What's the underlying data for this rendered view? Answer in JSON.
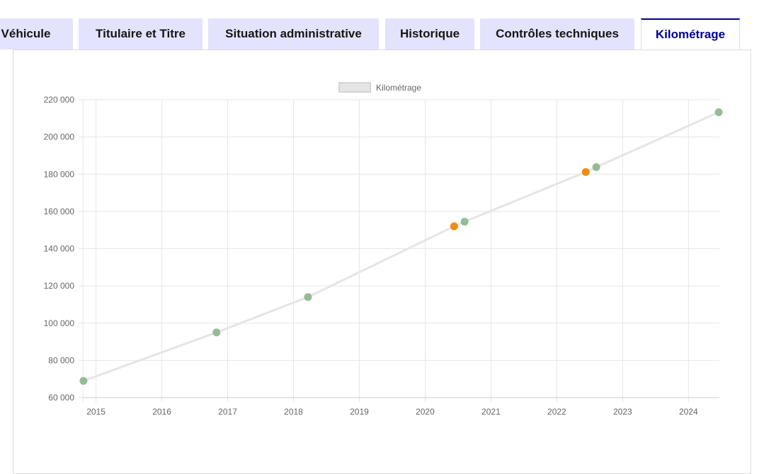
{
  "tabs": [
    {
      "label": "Véhicule",
      "active": false
    },
    {
      "label": "Titulaire et Titre",
      "active": false
    },
    {
      "label": "Situation administrative",
      "active": false
    },
    {
      "label": "Historique",
      "active": false
    },
    {
      "label": "Contrôles techniques",
      "active": false
    },
    {
      "label": "Kilométrage",
      "active": true
    }
  ],
  "chart_data": {
    "type": "line",
    "title": "",
    "xlabel": "",
    "ylabel": "",
    "legend": {
      "label": "Kilométrage",
      "position": "top-center"
    },
    "grid": true,
    "xlim": [
      2014.8,
      2024.47
    ],
    "ylim": [
      60000,
      220000
    ],
    "x_ticks": [
      2015,
      2016,
      2017,
      2018,
      2019,
      2020,
      2021,
      2022,
      2023,
      2024
    ],
    "x_tick_labels": [
      "2015",
      "2016",
      "2017",
      "2018",
      "2019",
      "2020",
      "2021",
      "2022",
      "2023",
      "2024"
    ],
    "y_ticks": [
      60000,
      80000,
      100000,
      120000,
      140000,
      160000,
      180000,
      200000,
      220000
    ],
    "y_tick_labels": [
      "60 000",
      "80 000",
      "100 000",
      "120 000",
      "140 000",
      "160 000",
      "180 000",
      "200 000",
      "220 000"
    ],
    "series": [
      {
        "name": "Kilométrage",
        "line_color": "#e5e5e5",
        "points": [
          {
            "x": 2014.81,
            "y": 69000,
            "color": "#95bc95"
          },
          {
            "x": 2016.83,
            "y": 95000,
            "color": "#95bc95"
          },
          {
            "x": 2018.22,
            "y": 114000,
            "color": "#95bc95"
          },
          {
            "x": 2020.44,
            "y": 152000,
            "color": "#f08c12"
          },
          {
            "x": 2020.6,
            "y": 154500,
            "color": "#95bc95"
          },
          {
            "x": 2022.44,
            "y": 181200,
            "color": "#f08c12"
          },
          {
            "x": 2022.6,
            "y": 183800,
            "color": "#95bc95"
          },
          {
            "x": 2024.46,
            "y": 213300,
            "color": "#95bc95"
          }
        ]
      }
    ]
  }
}
